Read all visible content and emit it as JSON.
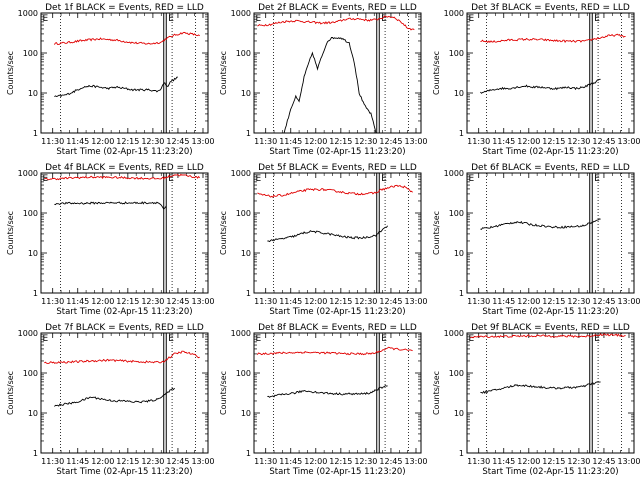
{
  "figure": {
    "x_tick_labels": [
      "11:30",
      "11:45",
      "12:00",
      "12:15",
      "12:30",
      "12:45",
      "13:00"
    ],
    "y_tick_labels": [
      "1",
      "10",
      "100",
      "1000"
    ],
    "xlabel": "Start Time (02-Apr-15 11:23:20)",
    "ylabel": "Counts/sec",
    "colors": {
      "events": "#000000",
      "lld": "#e00000",
      "axes": "#000000"
    }
  },
  "chart_data": [
    {
      "type": "line",
      "title": "Det 1f BLACK = Events, RED = LLD",
      "xlabel": "Start Time (02-Apr-15 11:23:20)",
      "ylabel": "Counts/sec",
      "x_unit": "minutes after 11:23:20",
      "xlim": [
        0,
        100
      ],
      "ylim": [
        1,
        1000
      ],
      "yscale": "log",
      "vlines_dotted": [
        11.7,
        78.5,
        92.5
      ],
      "vlines_solid": [
        73.5,
        75.0
      ],
      "marker_label": "E",
      "markers_x": [
        0.3,
        75.6
      ],
      "series": [
        {
          "color": "red",
          "x": [
            8,
            15,
            25,
            35,
            45,
            55,
            65,
            72,
            75,
            80,
            85,
            90,
            95
          ],
          "y": [
            170,
            180,
            205,
            225,
            210,
            180,
            170,
            185,
            230,
            280,
            320,
            300,
            270
          ]
        },
        {
          "color": "black",
          "x": [
            8,
            12,
            15,
            20,
            25,
            30,
            35,
            40,
            45,
            50,
            55,
            60,
            65,
            70,
            72,
            73.5,
            76,
            78,
            80,
            82
          ],
          "y": [
            8,
            8.5,
            9,
            11,
            14,
            15,
            14,
            13,
            14,
            13,
            12,
            12,
            12,
            11,
            13,
            18,
            15,
            20,
            22,
            25
          ]
        }
      ]
    },
    {
      "type": "line",
      "title": "Det 2f BLACK = Events, RED = LLD",
      "xlabel": "Start Time (02-Apr-15 11:23:20)",
      "ylabel": "Counts/sec",
      "x_unit": "minutes after 11:23:20",
      "xlim": [
        0,
        100
      ],
      "ylim": [
        1,
        1000
      ],
      "yscale": "log",
      "vlines_dotted": [
        11.7,
        78.5,
        92.5
      ],
      "vlines_solid": [
        73.5,
        75.0
      ],
      "marker_label": "E",
      "markers_x": [
        0.3,
        75.6
      ],
      "series": [
        {
          "color": "red",
          "x": [
            2,
            10,
            18,
            25,
            32,
            40,
            48,
            55,
            62,
            68,
            73,
            76,
            80,
            84,
            88,
            92,
            96
          ],
          "y": [
            480,
            520,
            610,
            640,
            600,
            560,
            580,
            700,
            720,
            660,
            680,
            750,
            820,
            780,
            600,
            420,
            380
          ]
        },
        {
          "color": "black",
          "x": [
            18,
            20,
            22,
            25,
            27,
            30,
            33,
            35,
            38,
            40,
            44,
            47,
            52,
            57,
            60,
            63,
            66,
            70,
            72,
            73
          ],
          "y": [
            1,
            2,
            4,
            8,
            6,
            25,
            60,
            100,
            40,
            70,
            200,
            240,
            240,
            180,
            60,
            10,
            5,
            3,
            1.5,
            1
          ]
        }
      ]
    },
    {
      "type": "line",
      "title": "Det 3f BLACK = Events, RED = LLD",
      "xlabel": "Start Time (02-Apr-15 11:23:20)",
      "ylabel": "Counts/sec",
      "x_unit": "minutes after 11:23:20",
      "xlim": [
        0,
        100
      ],
      "ylim": [
        1,
        1000
      ],
      "yscale": "log",
      "vlines_dotted": [
        11.7,
        78.5,
        92.5
      ],
      "vlines_solid": [
        73.5,
        75.0
      ],
      "marker_label": "E",
      "markers_x": [
        0.3,
        75.6
      ],
      "series": [
        {
          "color": "red",
          "x": [
            8,
            15,
            25,
            35,
            45,
            55,
            65,
            72,
            75,
            80,
            85,
            90,
            95
          ],
          "y": [
            200,
            190,
            210,
            220,
            215,
            200,
            195,
            200,
            220,
            240,
            270,
            280,
            260
          ]
        },
        {
          "color": "black",
          "x": [
            8,
            12,
            15,
            20,
            25,
            30,
            35,
            40,
            45,
            50,
            55,
            60,
            65,
            70,
            73,
            76,
            78,
            80
          ],
          "y": [
            10,
            11,
            12,
            13,
            13,
            14,
            15,
            14,
            14,
            13,
            13,
            14,
            13,
            14,
            16,
            18,
            20,
            22
          ]
        }
      ]
    },
    {
      "type": "line",
      "title": "Det 4f BLACK = Events, RED = LLD",
      "xlabel": "Start Time (02-Apr-15 11:23:20)",
      "ylabel": "Counts/sec",
      "x_unit": "minutes after 11:23:20",
      "xlim": [
        0,
        100
      ],
      "ylim": [
        1,
        1000
      ],
      "yscale": "log",
      "vlines_dotted": [
        11.7,
        78.5,
        92.5
      ],
      "vlines_solid": [
        73.5,
        75.0
      ],
      "marker_label": "E",
      "markers_x": [
        0.3,
        75.6
      ],
      "series": [
        {
          "color": "red",
          "x": [
            2,
            10,
            20,
            30,
            40,
            50,
            60,
            70,
            73,
            76,
            80,
            85,
            90,
            95
          ],
          "y": [
            700,
            720,
            760,
            790,
            780,
            760,
            740,
            720,
            740,
            800,
            900,
            880,
            820,
            760
          ]
        },
        {
          "color": "black",
          "x": [
            8,
            15,
            25,
            35,
            45,
            55,
            65,
            70,
            72,
            73.5,
            75
          ],
          "y": [
            170,
            175,
            175,
            178,
            180,
            178,
            180,
            182,
            160,
            120,
            150
          ]
        }
      ]
    },
    {
      "type": "line",
      "title": "Det 5f BLACK = Events, RED = LLD",
      "xlabel": "Start Time (02-Apr-15 11:23:20)",
      "ylabel": "Counts/sec",
      "x_unit": "minutes after 11:23:20",
      "xlim": [
        0,
        100
      ],
      "ylim": [
        1,
        1000
      ],
      "yscale": "log",
      "vlines_dotted": [
        11.7,
        78.5,
        92.5
      ],
      "vlines_solid": [
        73.5,
        75.0
      ],
      "marker_label": "E",
      "markers_x": [
        0.3,
        75.6
      ],
      "series": [
        {
          "color": "red",
          "x": [
            2,
            10,
            18,
            25,
            32,
            40,
            48,
            55,
            62,
            70,
            73,
            76,
            80,
            85,
            90,
            95
          ],
          "y": [
            300,
            260,
            280,
            330,
            380,
            390,
            360,
            320,
            300,
            310,
            320,
            380,
            420,
            480,
            450,
            330
          ]
        },
        {
          "color": "black",
          "x": [
            8,
            12,
            15,
            20,
            25,
            30,
            35,
            40,
            45,
            50,
            55,
            60,
            65,
            70,
            73,
            76,
            78,
            80
          ],
          "y": [
            20,
            21,
            22,
            24,
            27,
            32,
            35,
            32,
            30,
            27,
            25,
            24,
            24,
            26,
            28,
            35,
            42,
            48
          ]
        }
      ]
    },
    {
      "type": "line",
      "title": "Det 6f BLACK = Events, RED = LLD",
      "xlabel": "Start Time (02-Apr-15 11:23:20)",
      "ylabel": "Counts/sec",
      "x_unit": "minutes after 11:23:20",
      "xlim": [
        0,
        100
      ],
      "ylim": [
        1,
        1000
      ],
      "yscale": "log",
      "vlines_dotted": [
        11.7,
        78.5,
        92.5
      ],
      "vlines_solid": [
        73.5,
        75.0
      ],
      "marker_label": "E",
      "markers_x": [
        0.3,
        75.6
      ],
      "series": [
        {
          "color": "black",
          "x": [
            8,
            12,
            15,
            20,
            25,
            30,
            35,
            40,
            45,
            50,
            55,
            60,
            65,
            70,
            73,
            76,
            78,
            80
          ],
          "y": [
            40,
            42,
            44,
            50,
            55,
            60,
            55,
            50,
            48,
            45,
            44,
            45,
            46,
            48,
            55,
            60,
            65,
            70
          ]
        }
      ]
    },
    {
      "type": "line",
      "title": "Det 7f BLACK = Events, RED = LLD",
      "xlabel": "Start Time (02-Apr-15 11:23:20)",
      "ylabel": "Counts/sec",
      "x_unit": "minutes after 11:23:20",
      "xlim": [
        0,
        100
      ],
      "ylim": [
        1,
        1000
      ],
      "yscale": "log",
      "vlines_dotted": [
        11.7,
        78.5,
        92.5
      ],
      "vlines_solid": [
        73.5,
        75.0
      ],
      "marker_label": "E",
      "markers_x": [
        0.3,
        75.6
      ],
      "series": [
        {
          "color": "red",
          "x": [
            2,
            10,
            20,
            30,
            40,
            50,
            60,
            70,
            73,
            76,
            80,
            85,
            90,
            95
          ],
          "y": [
            180,
            185,
            190,
            200,
            210,
            200,
            190,
            185,
            190,
            230,
            300,
            340,
            300,
            250
          ]
        },
        {
          "color": "black",
          "x": [
            8,
            12,
            15,
            20,
            25,
            30,
            35,
            40,
            45,
            50,
            55,
            60,
            65,
            70,
            73,
            76,
            78,
            80
          ],
          "y": [
            15,
            16,
            17,
            18,
            21,
            25,
            23,
            21,
            20,
            20,
            19,
            19,
            20,
            22,
            28,
            32,
            38,
            42
          ]
        }
      ]
    },
    {
      "type": "line",
      "title": "Det 8f BLACK = Events, RED = LLD",
      "xlabel": "Start Time (02-Apr-15 11:23:20)",
      "ylabel": "Counts/sec",
      "x_unit": "minutes after 11:23:20",
      "xlim": [
        0,
        100
      ],
      "ylim": [
        1,
        1000
      ],
      "yscale": "log",
      "vlines_dotted": [
        11.7,
        78.5,
        92.5
      ],
      "vlines_solid": [
        73.5,
        75.0
      ],
      "marker_label": "E",
      "markers_x": [
        0.3,
        75.6
      ],
      "series": [
        {
          "color": "red",
          "x": [
            2,
            10,
            20,
            30,
            40,
            50,
            60,
            70,
            73,
            76,
            80,
            85,
            90,
            95
          ],
          "y": [
            300,
            310,
            320,
            330,
            320,
            310,
            300,
            305,
            320,
            360,
            420,
            400,
            380,
            360
          ]
        },
        {
          "color": "black",
          "x": [
            8,
            12,
            15,
            20,
            25,
            30,
            35,
            40,
            45,
            50,
            55,
            60,
            65,
            70,
            73,
            76,
            78,
            80
          ],
          "y": [
            25,
            26,
            28,
            30,
            32,
            36,
            34,
            32,
            31,
            30,
            30,
            30,
            30,
            32,
            38,
            42,
            45,
            48
          ]
        }
      ]
    },
    {
      "type": "line",
      "title": "Det 9f BLACK = Events, RED = LLD",
      "xlabel": "Start Time (02-Apr-15 11:23:20)",
      "ylabel": "Counts/sec",
      "x_unit": "minutes after 11:23:20",
      "xlim": [
        0,
        100
      ],
      "ylim": [
        1,
        1000
      ],
      "yscale": "log",
      "vlines_dotted": [
        11.7,
        78.5,
        92.5
      ],
      "vlines_solid": [
        73.5,
        75.0
      ],
      "marker_label": "E",
      "markers_x": [
        0.3,
        75.6
      ],
      "series": [
        {
          "color": "red",
          "x": [
            2,
            10,
            20,
            30,
            40,
            50,
            60,
            70,
            73,
            76,
            80,
            85,
            90,
            95
          ],
          "y": [
            800,
            810,
            820,
            830,
            850,
            840,
            830,
            820,
            830,
            870,
            920,
            900,
            880,
            860
          ]
        },
        {
          "color": "black",
          "x": [
            8,
            12,
            15,
            20,
            25,
            30,
            35,
            40,
            45,
            50,
            55,
            60,
            65,
            70,
            73,
            76,
            78,
            80
          ],
          "y": [
            32,
            34,
            36,
            40,
            45,
            50,
            48,
            46,
            44,
            42,
            42,
            43,
            44,
            46,
            52,
            55,
            58,
            60
          ]
        }
      ]
    }
  ]
}
